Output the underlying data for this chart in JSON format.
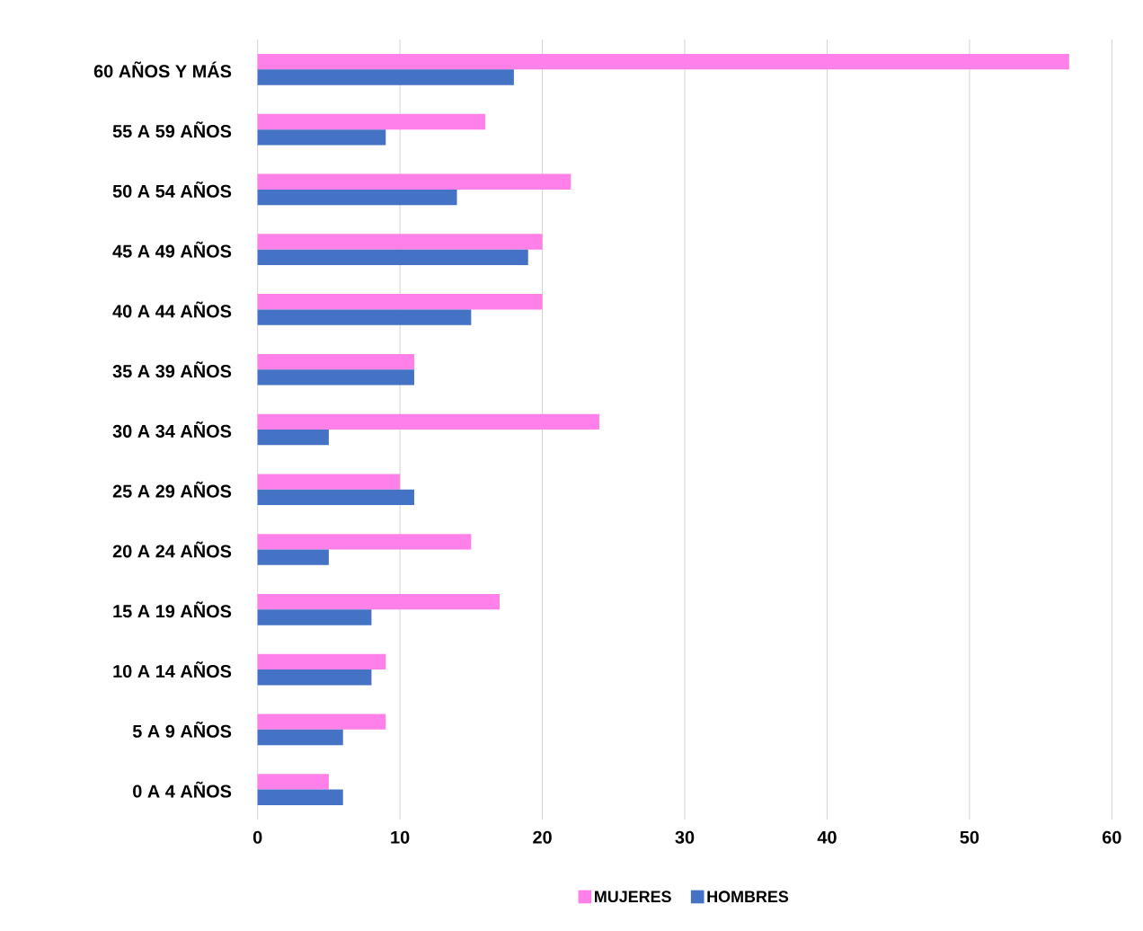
{
  "chart_data": {
    "type": "bar",
    "orientation": "horizontal",
    "categories": [
      "60 AÑOS Y MÁS",
      "55 A 59 AÑOS",
      "50 A 54 AÑOS",
      "45 A 49 AÑOS",
      "40 A 44 AÑOS",
      "35 A 39 AÑOS",
      "30 A 34 AÑOS",
      "25 A 29 AÑOS",
      "20 A 24 AÑOS",
      "15 A 19 AÑOS",
      "10 A 14 AÑOS",
      "5 A 9 AÑOS",
      "0 A 4 AÑOS"
    ],
    "series": [
      {
        "name": "MUJERES",
        "color": "#ff80e8",
        "values": [
          57,
          16,
          22,
          20,
          20,
          11,
          24,
          10,
          15,
          17,
          9,
          9,
          5
        ]
      },
      {
        "name": "HOMBRES",
        "color": "#4472c4",
        "values": [
          18,
          9,
          14,
          19,
          15,
          11,
          5,
          11,
          5,
          8,
          8,
          6,
          6
        ]
      }
    ],
    "xlim": [
      0,
      60
    ],
    "xticks": [
      0,
      10,
      20,
      30,
      40,
      50,
      60
    ],
    "grid": "x",
    "legend": "bottom"
  }
}
